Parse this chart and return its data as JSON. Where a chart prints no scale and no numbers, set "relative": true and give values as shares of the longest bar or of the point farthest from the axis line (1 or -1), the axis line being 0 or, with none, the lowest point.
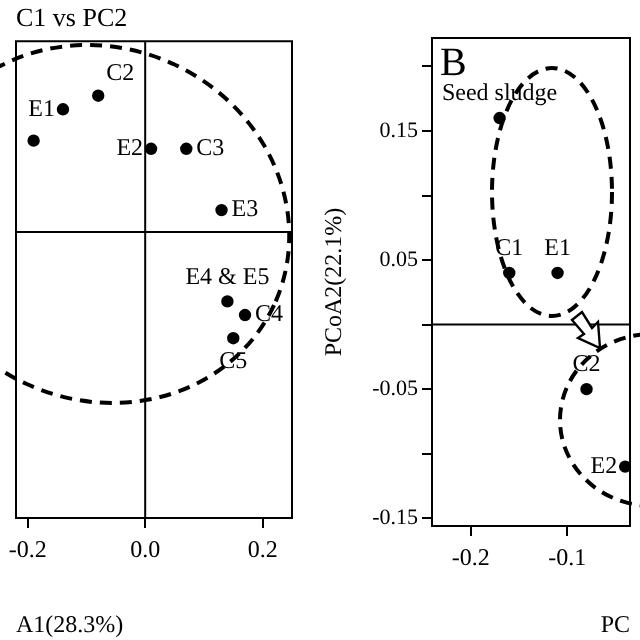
{
  "chart_data": [
    {
      "type": "scatter",
      "title": "C1 vs PC2",
      "xlabel": "A1(28.3%)",
      "relative": true,
      "x": [
        -0.19,
        -0.14,
        -0.08,
        0.01,
        0.07,
        0.13,
        0.14,
        0.17,
        0.15
      ],
      "series": [
        {
          "color": "#000000",
          "values": [
            0.67,
            0.9,
            1,
            0.61,
            0.61,
            0.16,
            -0.51,
            -0.61,
            -0.78
          ]
        }
      ],
      "xlim": [
        -0.22,
        0.25
      ],
      "xticks": [
        -0.2,
        {
          "value": 0,
          "label": "0.0"
        },
        0.2
      ],
      "tick_labels": "x",
      "grid": false,
      "legend": false,
      "marker": "circle",
      "ref_lines": [
        {
          "axis": "x",
          "value": 0,
          "color": "#000000"
        },
        {
          "axis": "y",
          "value": 0,
          "color": "#000000"
        }
      ],
      "annotations": [
        {
          "text": "E1",
          "x": -0.14,
          "y": 0.9
        },
        {
          "text": "C2",
          "x": -0.08,
          "y": 1
        },
        {
          "text": "E2",
          "x": 0.01,
          "y": 0.61
        },
        {
          "text": "C3",
          "x": 0.07,
          "y": 0.61
        },
        {
          "text": "E3",
          "x": 0.13,
          "y": 0.16
        },
        {
          "text": "E4 & E5",
          "x": 0.14,
          "y": -0.51
        },
        {
          "text": "C4",
          "x": 0.17,
          "y": -0.61
        },
        {
          "text": "C5",
          "x": 0.15,
          "y": -0.78
        }
      ]
    },
    {
      "type": "scatter",
      "ylabel": "PCoA2(22.1%)",
      "xlabel": "PC",
      "x": [
        -0.17,
        -0.16,
        -0.11,
        -0.08,
        -0.04
      ],
      "series": [
        {
          "color": "#000000",
          "values": [
            0.16,
            0.04,
            0.04,
            -0.05,
            -0.11
          ]
        }
      ],
      "xlim": [
        -0.24,
        -0.035
      ],
      "xticks": [
        -0.2,
        -0.1
      ],
      "ylim": [
        -0.156,
        0.222
      ],
      "yticks": [
        -0.15,
        {
          "value": -0.1,
          "label": null
        },
        -0.05,
        {
          "value": 0,
          "label": null
        },
        0.05,
        {
          "value": 0.1,
          "label": null
        },
        0.15,
        {
          "value": 0.2,
          "label": null
        }
      ],
      "grid": false,
      "legend": false,
      "marker": "circle",
      "ref_lines": [
        {
          "axis": "y",
          "value": 0,
          "color": "#000000"
        }
      ],
      "annotations": [
        "B",
        {
          "text": "Seed sludge",
          "x": -0.17,
          "y": 0.16
        },
        {
          "text": "C1",
          "x": -0.16,
          "y": 0.04
        },
        {
          "text": "E1",
          "x": -0.11,
          "y": 0.04
        },
        {
          "text": "C2",
          "x": -0.08,
          "y": -0.05
        },
        {
          "text": "E2",
          "x": -0.04,
          "y": -0.11
        }
      ]
    }
  ]
}
